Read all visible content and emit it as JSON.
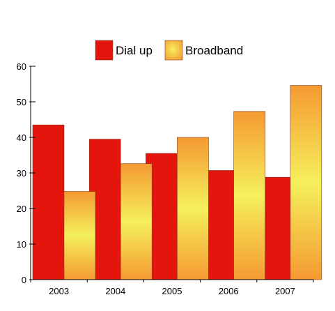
{
  "chart_data": {
    "type": "bar",
    "title": "",
    "xlabel": "",
    "ylabel": "",
    "categories": [
      "2003",
      "2004",
      "2005",
      "2006",
      "2007"
    ],
    "series": [
      {
        "name": "Dial up",
        "values": [
          43.5,
          39.5,
          35.5,
          30.7,
          28.8
        ],
        "color": "#e3150c"
      },
      {
        "name": "Broadband",
        "values": [
          24.8,
          32.6,
          40.0,
          47.3,
          54.6
        ],
        "color": "#f5a035",
        "gradient_center": "#f5ef5a"
      }
    ],
    "ylim": [
      0,
      60
    ],
    "yticks": [
      0,
      10,
      20,
      30,
      40,
      50,
      60
    ],
    "grid": false,
    "legend_position": "top-center"
  }
}
